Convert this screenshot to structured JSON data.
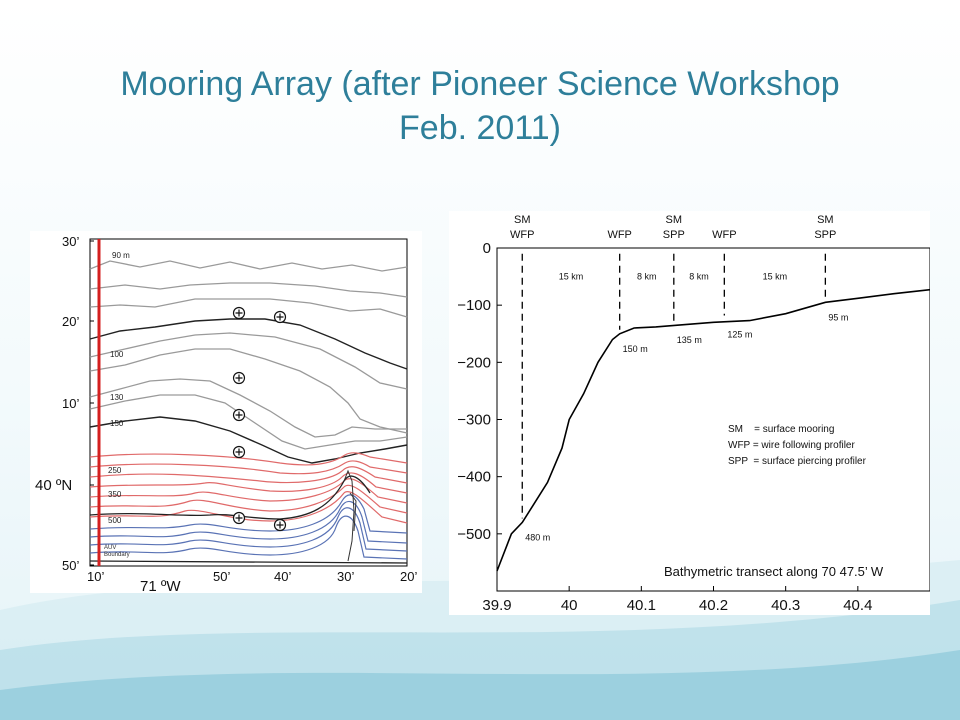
{
  "slide": {
    "title_line1": "Mooring Array (after Pioneer Science Workshop",
    "title_line2": "Feb. 2011)"
  },
  "colors": {
    "title": "#2e7f9a",
    "isobath_gray": "#9a9a9a",
    "isobath_dark": "#222222",
    "isobath_red": "#e06a6a",
    "isobath_blue": "#5a73b5",
    "auv_boundary": "#d42020"
  },
  "map": {
    "y_ticks": [
      "30’",
      "20’",
      "10’",
      "40 ºN",
      "50’"
    ],
    "x_ticks": [
      "10’",
      "50’",
      "40’",
      "30’",
      "20’"
    ],
    "x_axis_label": "71 ºW",
    "depth_labels": [
      "90 m",
      "100",
      "130",
      "150",
      "250",
      "350",
      "500"
    ],
    "auv_label_line1": "AUV",
    "auv_label_line2": "Boundary",
    "mooring_icon": "circled-plus-icon",
    "mooring_count": 7
  },
  "chart_data": {
    "type": "line",
    "title": "Bathymetric transect along 70 47.5’ W",
    "xlabel": "",
    "ylabel": "",
    "xlim": [
      39.9,
      40.5
    ],
    "ylim": [
      -600,
      0
    ],
    "x_ticks": [
      "39.9",
      "40",
      "40.1",
      "40.2",
      "40.3",
      "40.4"
    ],
    "y_ticks": [
      "0",
      "−100",
      "−200",
      "−300",
      "−400",
      "−500"
    ],
    "series": [
      {
        "x": [
          39.9,
          39.92,
          39.935,
          39.95,
          39.97,
          39.99,
          40.0,
          40.02,
          40.04,
          40.06,
          40.07,
          40.09,
          40.12,
          40.15,
          40.2,
          40.25,
          40.3,
          40.355,
          40.4,
          40.45,
          40.5
        ],
        "values": [
          -565,
          -500,
          -480,
          -450,
          -410,
          -350,
          -300,
          -255,
          -200,
          -160,
          -150,
          -140,
          -138,
          -135,
          -130,
          -127,
          -115,
          -95,
          -88,
          -80,
          -73
        ]
      }
    ],
    "moorings": [
      {
        "label_line1": "SM",
        "label_line2": "WFP",
        "x": 39.935,
        "depth_label": "480 m",
        "depth": -480
      },
      {
        "label_line1": "",
        "label_line2": "WFP",
        "x": 40.07,
        "depth_label": "150 m",
        "depth": -150
      },
      {
        "label_line1": "SM",
        "label_line2": "SPP",
        "x": 40.145,
        "depth_label": "135 m",
        "depth": -135
      },
      {
        "label_line1": "",
        "label_line2": "WFP",
        "x": 40.215,
        "depth_label": "125 m",
        "depth": -125
      },
      {
        "label_line1": "SM",
        "label_line2": "SPP",
        "x": 40.355,
        "depth_label": "95 m",
        "depth": -95
      }
    ],
    "spacings": [
      "15 km",
      "8 km",
      "8 km",
      "15 km"
    ],
    "legend": [
      "SM    = surface mooring",
      "WFP = wire following profiler",
      "SPP  = surface piercing profiler"
    ]
  }
}
